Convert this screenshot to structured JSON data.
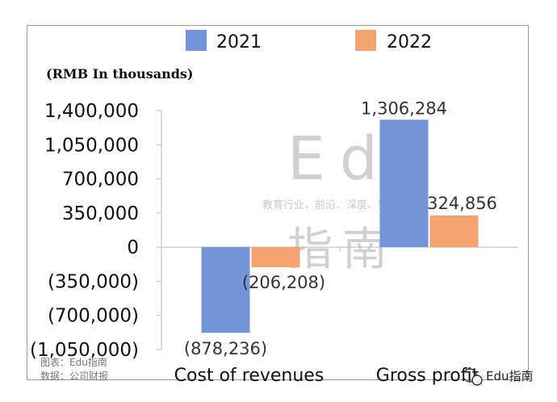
{
  "chart_data": {
    "type": "bar",
    "unit_label": "(RMB In thousands)",
    "categories": [
      "Cost of revenues",
      "Gross profit"
    ],
    "series": [
      {
        "name": "2021",
        "values": [
          -878236,
          1306284
        ],
        "labels": [
          "(878,236)",
          "1,306,284"
        ]
      },
      {
        "name": "2022",
        "values": [
          -206208,
          324856
        ],
        "labels": [
          "(206,208)",
          "324,856"
        ]
      }
    ],
    "yticks": [
      -1050000,
      -700000,
      -350000,
      0,
      350000,
      700000,
      1050000,
      1400000
    ],
    "ytick_labels": [
      "(1,050,000)",
      "(700,000)",
      "(350,000)",
      "0",
      "350,000",
      "700,000",
      "1,050,000",
      "1,400,000"
    ],
    "ylim": [
      -1050000,
      1400000
    ],
    "legend_position": "top",
    "grid": false,
    "colors": {
      "2021": "#7394d6",
      "2022": "#f2a571"
    }
  },
  "watermark": {
    "big": "Edu",
    "cn": "指南",
    "tagline": "教育行业，前沿、深度、独家"
  },
  "source": {
    "line1": "图表：Edu指南",
    "line2": "数据：公司财报"
  },
  "brand": {
    "icon": "wechat-icon",
    "text": "Edu指南"
  }
}
